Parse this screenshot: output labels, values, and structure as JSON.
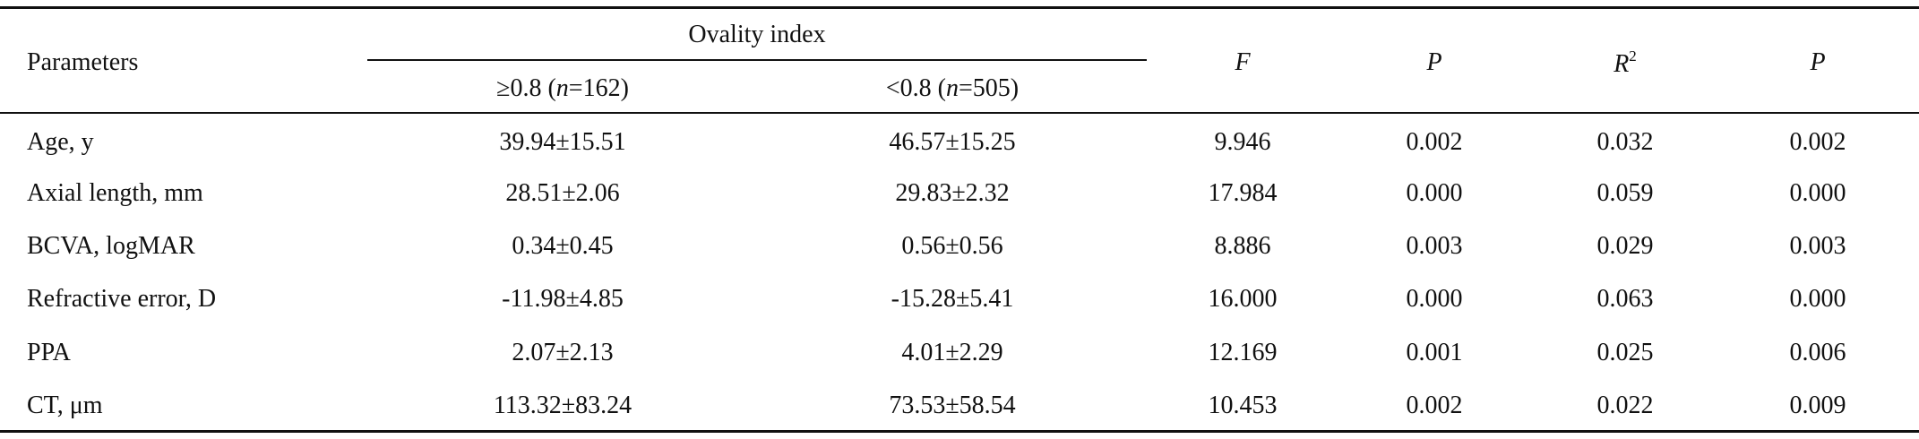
{
  "header": {
    "parameters": "Parameters",
    "group": "Ovality index",
    "subcolumns": [
      {
        "pre": "≥0.8 (",
        "n": "n",
        "post": "=162)"
      },
      {
        "pre": "<0.8 (",
        "n": "n",
        "post": "=505)"
      }
    ],
    "f": "F",
    "p1": "P",
    "r": "R",
    "r_sup": "2",
    "p2": "P"
  },
  "table": {
    "rows": [
      [
        "Age, y",
        "39.94±15.51",
        "46.57±15.25",
        "9.946",
        "0.002",
        "0.032",
        "0.002"
      ],
      [
        "Axial length, mm",
        "28.51±2.06",
        "29.83±2.32",
        "17.984",
        "0.000",
        "0.059",
        "0.000"
      ],
      [
        "BCVA, logMAR",
        "0.34±0.45",
        "0.56±0.56",
        "8.886",
        "0.003",
        "0.029",
        "0.003"
      ],
      [
        "Refractive error, D",
        "-11.98±4.85",
        "-15.28±5.41",
        "16.000",
        "0.000",
        "0.063",
        "0.000"
      ],
      [
        "PPA",
        "2.07±2.13",
        "4.01±2.29",
        "12.169",
        "0.001",
        "0.025",
        "0.006"
      ],
      [
        "CT, μm",
        "113.32±83.24",
        "73.53±58.54",
        "10.453",
        "0.002",
        "0.022",
        "0.009"
      ]
    ]
  }
}
